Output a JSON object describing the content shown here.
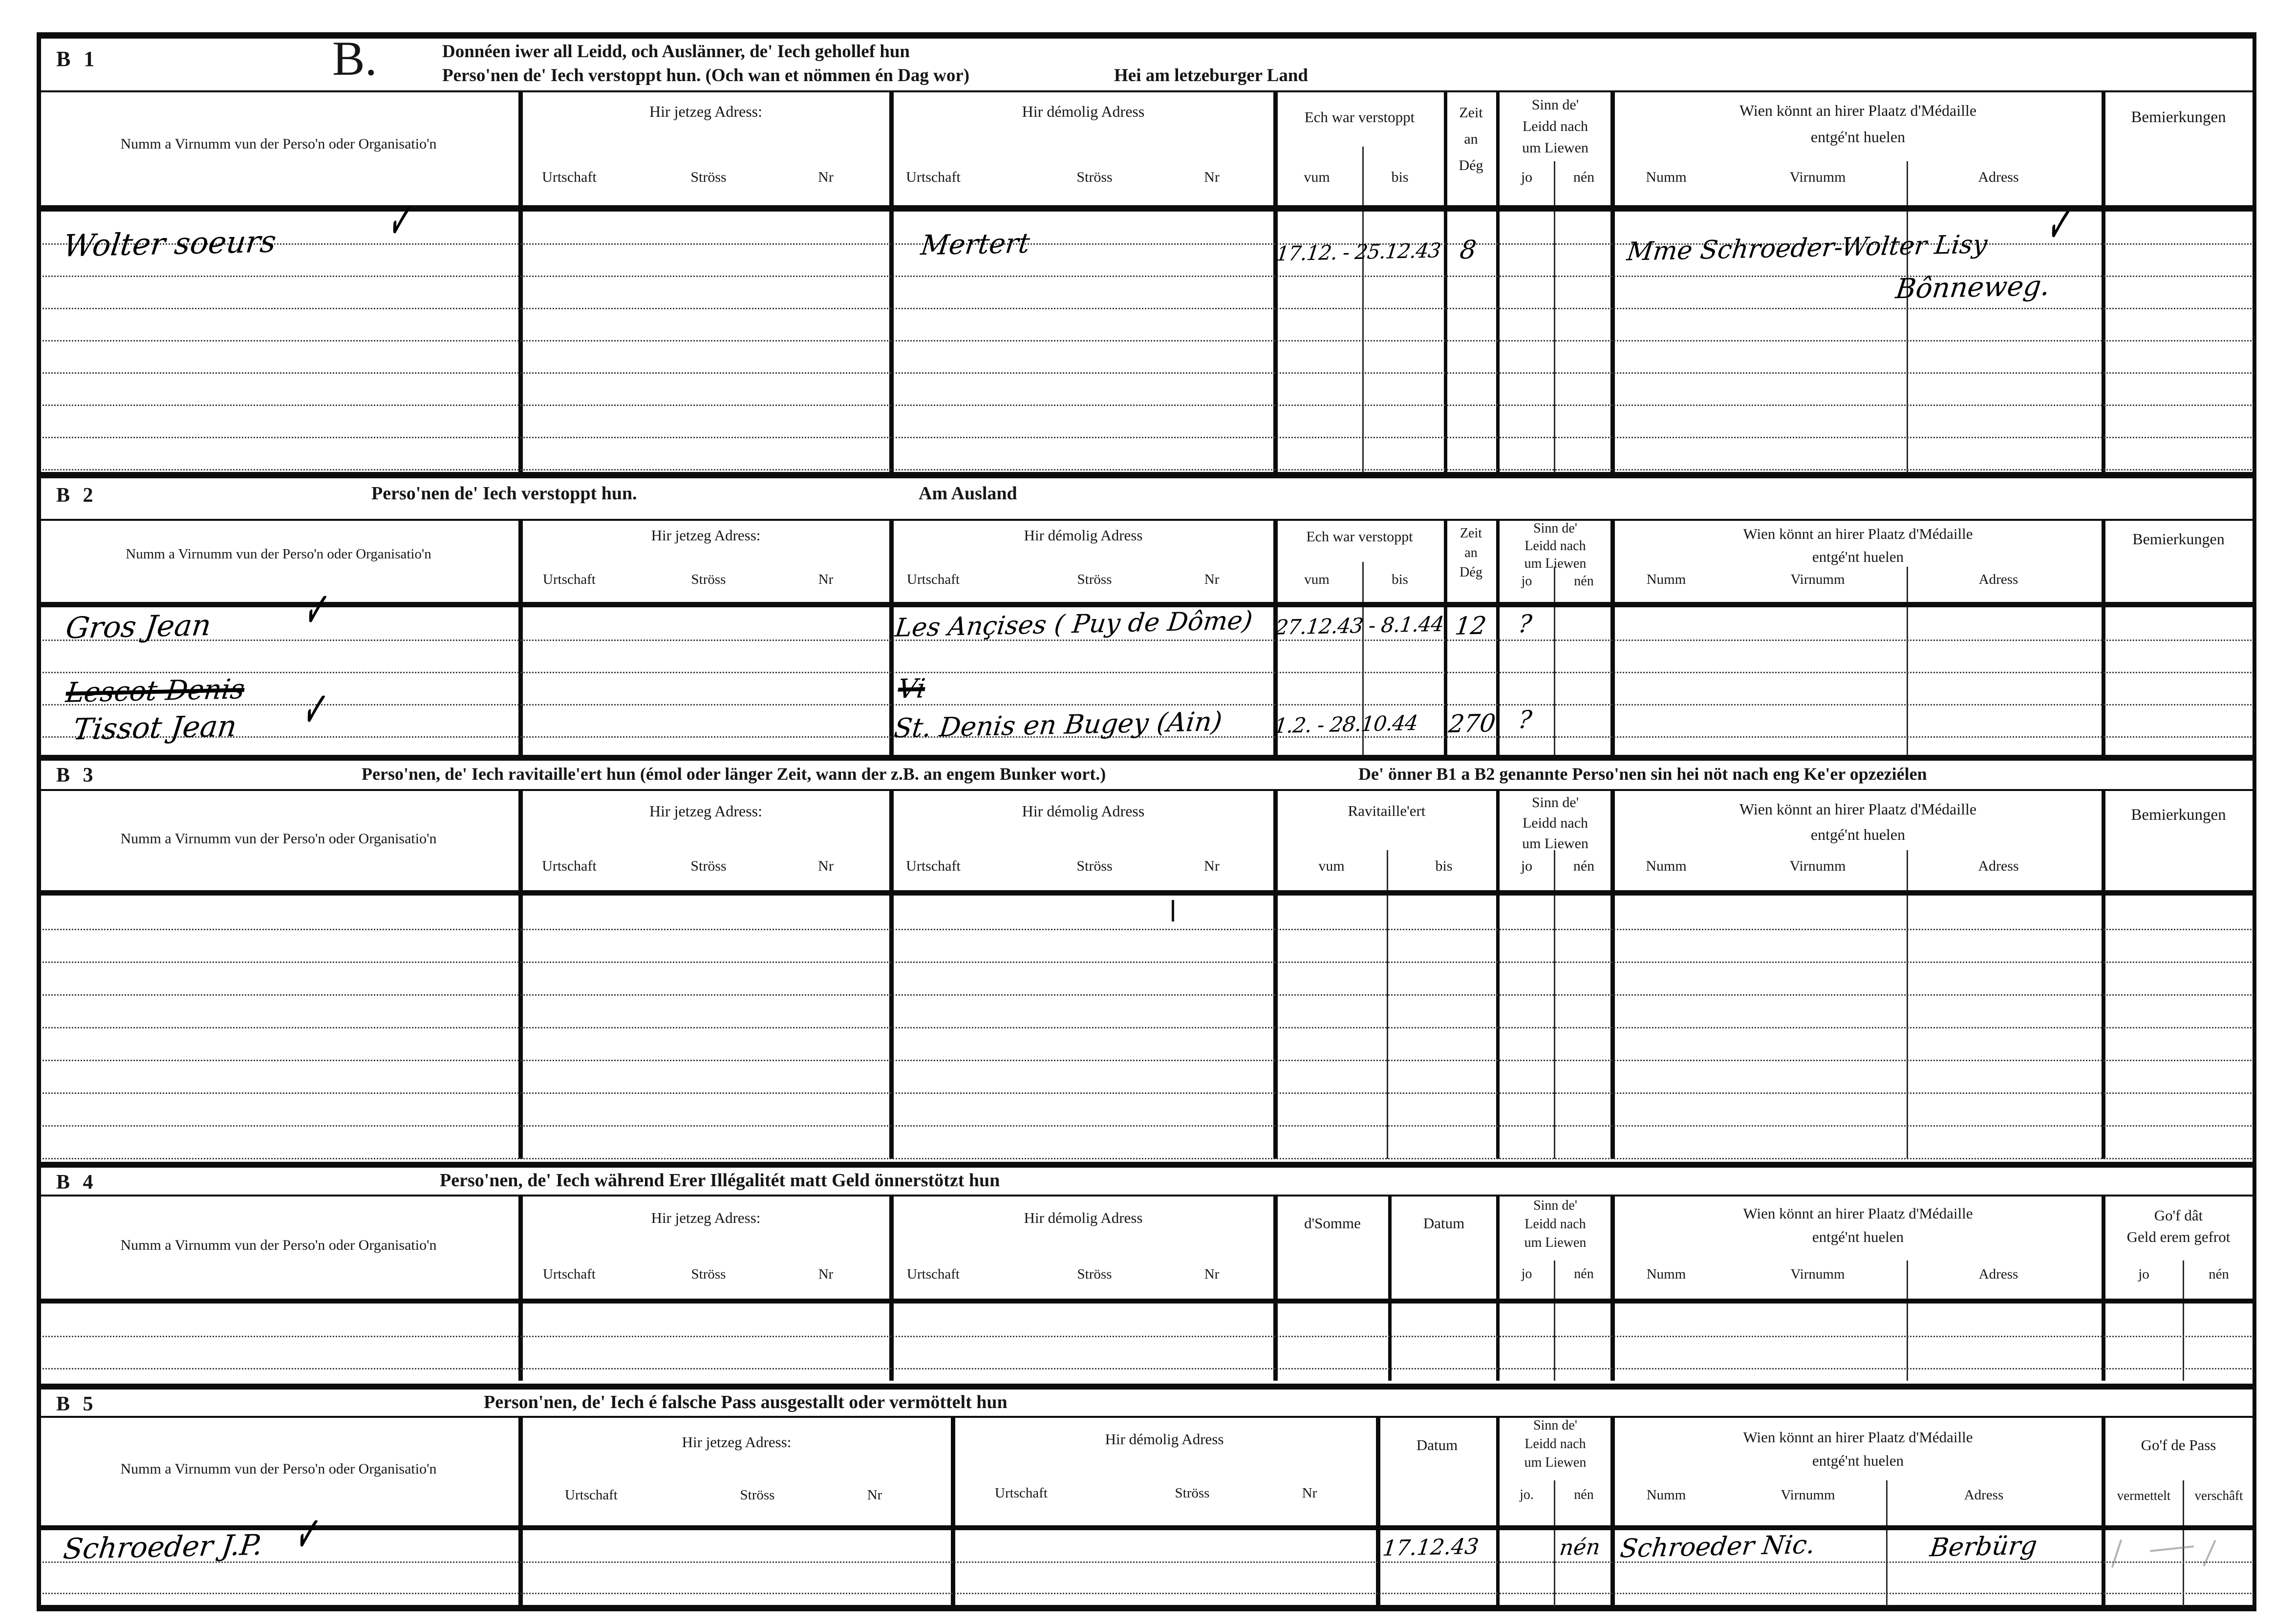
{
  "common": {
    "name_col": "Numm a Virnumm vun der Perso'n oder Organisatio'n",
    "jetzeg": "Hir jetzeg Adress:",
    "demolig": "Hir démolig Adress",
    "urtschaft": "Urtschaft",
    "stross": "Ströss",
    "nr": "Nr",
    "verstoppt": "Ech war verstoppt",
    "vum": "vum",
    "bis": "bis",
    "zeit1": "Zeit",
    "zeit2": "an",
    "zeit3": "Dég",
    "sinn1": "Sinn de'",
    "sinn2": "Leidd nach",
    "sinn3": "um Liewen",
    "jo": "jo",
    "jo_dot": "jo.",
    "nen": "nén",
    "wien1": "Wien könnt an hirer Plaatz d'Médaille",
    "wien2": "entgé'nt huelen",
    "numm": "Numm",
    "virnumm": "Virnumm",
    "adress": "Adress",
    "bem": "Bemierkungen",
    "check": "✓"
  },
  "b1": {
    "label": "B 1",
    "letter": "B.",
    "title1": "Donnéen iwer all Leidd, och Auslänner, de' Iech gehollef hun",
    "title2": "Perso'nen de' Iech verstoppt hun. (Och wan et nömmen én Dag wor)",
    "title2b": "Hei am letzeburger Land",
    "entry": {
      "name": "Wolter soeurs",
      "demolig_urtschaft": "Mertert",
      "period": "17.12. - 25.12.43",
      "days": "8",
      "medal_name": "Mme Schroeder-Wolter Lisy",
      "medal_addr": "Bônneweg."
    }
  },
  "b2": {
    "label": "B 2",
    "title": "Perso'nen de' Iech verstoppt hun.",
    "subtitle": "Am Ausland",
    "entries": [
      {
        "name": "Gros Jean",
        "demolig": "Les Ançises ( Puy de Dôme)",
        "period": "27.12.43 - 8.1.44",
        "days": "12",
        "alive_jo": "?"
      },
      {
        "name_struck": "Lescot Denis",
        "name": "Tissot Jean",
        "demolig_struck": "Vi",
        "demolig": "St. Denis en Bugey (Ain)",
        "period": "1.2. - 28.10.44",
        "days": "270",
        "alive_jo": "?"
      }
    ]
  },
  "b3": {
    "label": "B 3",
    "title": "Perso'nen, de' Iech ravitaille'ert hun (émol oder länger Zeit, wann der z.B. an engem Bunker wort.)",
    "title2": "De' önner B1 a B2 genannte Perso'nen sin hei nöt nach eng Ke'er opzeziélen",
    "ravitailleert": "Ravitaille'ert"
  },
  "b4": {
    "label": "B 4",
    "title": "Perso'nen, de' Iech während Erer Illégalitét matt Geld önnerstötzt hun",
    "dsomme": "d'Somme",
    "datum": "Datum",
    "gof1": "Go'f dât",
    "gof2": "Geld erem gefrot"
  },
  "b5": {
    "label": "B 5",
    "title": "Person'nen, de' Iech é falsche Pass ausgestallt oder vermöttelt hun",
    "datum": "Datum",
    "gof": "Go'f de Pass",
    "vermettelt": "vermettelt",
    "verschaft": "verschâft",
    "entry": {
      "name": "Schroeder J.P.",
      "datum": "17.12.43",
      "alive_nen": "nén",
      "numm": "Schroeder Nic.",
      "adress": "Berbürg"
    }
  }
}
